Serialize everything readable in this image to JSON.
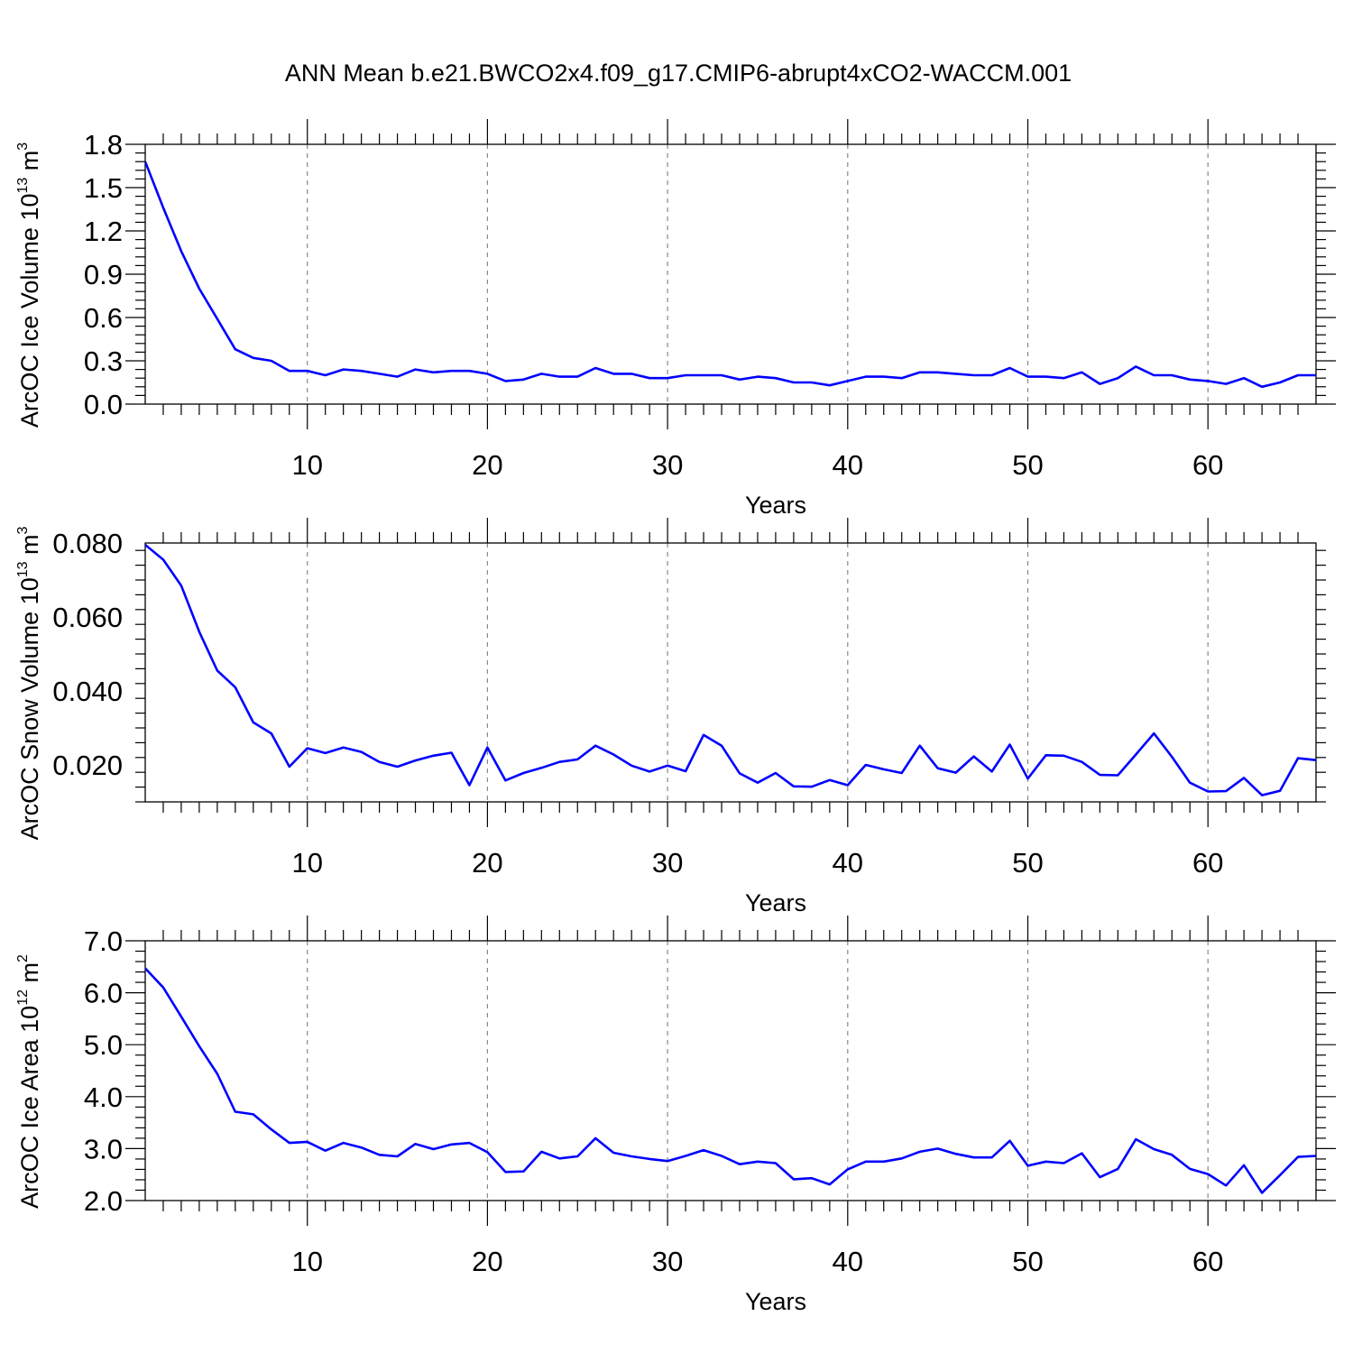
{
  "figure": {
    "title": "ANN Mean b.e21.BWCO2x4.f09_g17.CMIP6-abrupt4xCO2-WACCM.001"
  },
  "chart_data": [
    {
      "type": "line",
      "xlabel": "Years",
      "ylabel_main": "ArcOC Ice Volume 10",
      "ylabel_sup": "13",
      "ylabel_unit": " m",
      "ylabel_unit_sup": "3",
      "xlim": [
        1,
        66
      ],
      "ylim": [
        0.0,
        1.8
      ],
      "x_ticks": [
        "10",
        "20",
        "30",
        "40",
        "50",
        "60"
      ],
      "y_ticks": [
        "0.0",
        "0.3",
        "0.6",
        "0.9",
        "1.2",
        "1.5",
        "1.8"
      ],
      "grid": "vertical dashed at major x ticks",
      "color": "#0000ff",
      "series": [
        {
          "x": [
            1,
            2,
            3,
            4,
            5,
            6,
            7,
            8,
            9,
            10,
            11,
            12,
            13,
            14,
            15,
            16,
            17,
            18,
            19,
            20,
            21,
            22,
            23,
            24,
            25,
            26,
            27,
            28,
            29,
            30,
            31,
            32,
            33,
            34,
            35,
            36,
            37,
            38,
            39,
            40,
            41,
            42,
            43,
            44,
            45,
            46,
            47,
            48,
            49,
            50,
            51,
            52,
            53,
            54,
            55,
            56,
            57,
            58,
            59,
            60,
            61,
            62,
            63,
            64,
            65,
            66
          ],
          "values": [
            1.68,
            1.36,
            1.06,
            0.8,
            0.59,
            0.38,
            0.32,
            0.3,
            0.23,
            0.23,
            0.2,
            0.24,
            0.23,
            0.21,
            0.19,
            0.24,
            0.22,
            0.23,
            0.23,
            0.21,
            0.16,
            0.17,
            0.21,
            0.19,
            0.19,
            0.25,
            0.21,
            0.21,
            0.18,
            0.18,
            0.2,
            0.2,
            0.2,
            0.17,
            0.19,
            0.18,
            0.15,
            0.15,
            0.13,
            0.16,
            0.19,
            0.19,
            0.18,
            0.22,
            0.22,
            0.21,
            0.2,
            0.2,
            0.25,
            0.19,
            0.19,
            0.18,
            0.22,
            0.14,
            0.18,
            0.26,
            0.2,
            0.2,
            0.17,
            0.16,
            0.14,
            0.18,
            0.12,
            0.15,
            0.2,
            0.2
          ]
        }
      ]
    },
    {
      "type": "line",
      "xlabel": "Years",
      "ylabel_main": "ArcOC Snow Volume 10",
      "ylabel_sup": "13",
      "ylabel_unit": " m",
      "ylabel_unit_sup": "3",
      "xlim": [
        1,
        66
      ],
      "ylim": [
        0.01,
        0.08
      ],
      "x_ticks": [
        "10",
        "20",
        "30",
        "40",
        "50",
        "60"
      ],
      "y_ticks": [
        "0.020",
        "0.040",
        "0.060",
        "0.080"
      ],
      "grid": "vertical dashed at major x ticks",
      "color": "#0000ff",
      "series": [
        {
          "x": [
            1,
            2,
            3,
            4,
            5,
            6,
            7,
            8,
            9,
            10,
            11,
            12,
            13,
            14,
            15,
            16,
            17,
            18,
            19,
            20,
            21,
            22,
            23,
            24,
            25,
            26,
            27,
            28,
            29,
            30,
            31,
            32,
            33,
            34,
            35,
            36,
            37,
            38,
            39,
            40,
            41,
            42,
            43,
            44,
            45,
            46,
            47,
            48,
            49,
            50,
            51,
            52,
            53,
            54,
            55,
            56,
            57,
            58,
            59,
            60,
            61,
            62,
            63,
            64,
            65,
            66
          ],
          "values": [
            0.0795,
            0.0755,
            0.0685,
            0.056,
            0.0455,
            0.041,
            0.0315,
            0.0285,
            0.0195,
            0.0245,
            0.0232,
            0.0247,
            0.0235,
            0.0208,
            0.0195,
            0.0212,
            0.0225,
            0.0233,
            0.0145,
            0.0247,
            0.0158,
            0.0178,
            0.0192,
            0.0208,
            0.0215,
            0.0252,
            0.0228,
            0.0198,
            0.0182,
            0.0198,
            0.0183,
            0.0281,
            0.0252,
            0.0177,
            0.0152,
            0.0178,
            0.0142,
            0.0141,
            0.0159,
            0.0145,
            0.02,
            0.0188,
            0.0178,
            0.0252,
            0.0191,
            0.0179,
            0.0223,
            0.0182,
            0.0255,
            0.0163,
            0.0226,
            0.0225,
            0.0208,
            0.0173,
            0.0172,
            0.0228,
            0.0285,
            0.0222,
            0.0152,
            0.0128,
            0.0129,
            0.0165,
            0.0118,
            0.013,
            0.0218,
            0.0213
          ]
        }
      ]
    },
    {
      "type": "line",
      "xlabel": "Years",
      "ylabel_main": "ArcOC Ice Area 10",
      "ylabel_sup": "12",
      "ylabel_unit": " m",
      "ylabel_unit_sup": "2",
      "xlim": [
        1,
        66
      ],
      "ylim": [
        2.0,
        7.0
      ],
      "x_ticks": [
        "10",
        "20",
        "30",
        "40",
        "50",
        "60"
      ],
      "y_ticks": [
        "2.0",
        "3.0",
        "4.0",
        "5.0",
        "6.0",
        "7.0"
      ],
      "grid": "vertical dashed at major x ticks",
      "color": "#0000ff",
      "series": [
        {
          "x": [
            1,
            2,
            3,
            4,
            5,
            6,
            7,
            8,
            9,
            10,
            11,
            12,
            13,
            14,
            15,
            16,
            17,
            18,
            19,
            20,
            21,
            22,
            23,
            24,
            25,
            26,
            27,
            28,
            29,
            30,
            31,
            32,
            33,
            34,
            35,
            36,
            37,
            38,
            39,
            40,
            41,
            42,
            43,
            44,
            45,
            46,
            47,
            48,
            49,
            50,
            51,
            52,
            53,
            54,
            55,
            56,
            57,
            58,
            59,
            60,
            61,
            62,
            63,
            64,
            65,
            66
          ],
          "values": [
            6.47,
            6.1,
            5.54,
            4.97,
            4.44,
            3.71,
            3.66,
            3.37,
            3.11,
            3.13,
            2.96,
            3.11,
            3.02,
            2.88,
            2.85,
            3.09,
            2.99,
            3.08,
            3.11,
            2.93,
            2.55,
            2.56,
            2.94,
            2.81,
            2.85,
            3.2,
            2.92,
            2.85,
            2.8,
            2.76,
            2.86,
            2.97,
            2.86,
            2.7,
            2.75,
            2.72,
            2.41,
            2.43,
            2.31,
            2.6,
            2.75,
            2.75,
            2.81,
            2.94,
            3.0,
            2.9,
            2.83,
            2.83,
            3.15,
            2.67,
            2.75,
            2.72,
            2.91,
            2.45,
            2.61,
            3.18,
            2.99,
            2.88,
            2.61,
            2.51,
            2.29,
            2.68,
            2.15,
            2.49,
            2.84,
            2.86
          ]
        }
      ]
    }
  ]
}
